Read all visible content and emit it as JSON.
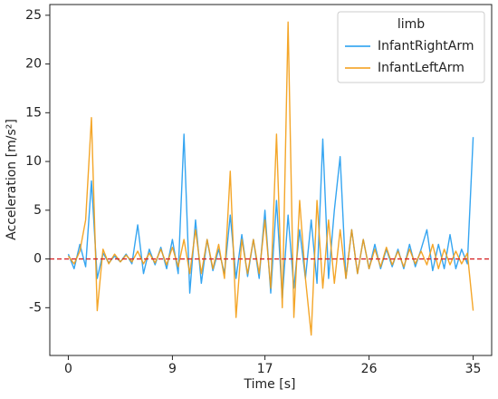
{
  "chart_data": {
    "type": "line",
    "xlabel": "Time [s]",
    "ylabel": "Acceleration [m/s²]",
    "x": [
      0,
      0.5,
      1,
      1.5,
      2,
      2.5,
      3,
      3.5,
      4,
      4.5,
      5,
      5.5,
      6,
      6.5,
      7,
      7.5,
      8,
      8.5,
      9,
      9.5,
      10,
      10.5,
      11,
      11.5,
      12,
      12.5,
      13,
      13.5,
      14,
      14.5,
      15,
      15.5,
      16,
      16.5,
      17,
      17.5,
      18,
      18.5,
      19,
      19.5,
      20,
      20.5,
      21,
      21.5,
      22,
      22.5,
      23,
      23.5,
      24,
      24.5,
      25,
      25.5,
      26,
      26.5,
      27,
      27.5,
      28,
      28.5,
      29,
      29.5,
      30,
      30.5,
      31,
      31.5,
      32,
      32.5,
      33,
      33.5,
      34,
      34.5,
      35
    ],
    "series": [
      {
        "name": "InfantRightArm",
        "color": "#1f9bef",
        "values": [
          0.5,
          -1,
          1.5,
          -0.8,
          8,
          -2,
          0.6,
          -0.4,
          0.3,
          -0.3,
          0.5,
          -0.5,
          3.5,
          -1.5,
          1,
          -0.6,
          1.2,
          -1,
          2,
          -1.5,
          12.8,
          -3.5,
          4,
          -2.5,
          2,
          -1.2,
          1,
          -1.5,
          4.5,
          -2,
          2.5,
          -1.8,
          2,
          -2,
          5,
          -3.5,
          6,
          -4,
          4.5,
          -3,
          3,
          -2,
          4,
          -2.5,
          12.3,
          -2,
          5,
          10.5,
          -2,
          3,
          -1.5,
          2,
          -1,
          1.5,
          -1,
          1,
          -0.8,
          1,
          -1,
          1.5,
          -0.8,
          1,
          3,
          -1.2,
          1.5,
          -1,
          2.5,
          -1,
          1,
          -0.5,
          12.5
        ]
      },
      {
        "name": "InfantLeftArm",
        "color": "#f39c12",
        "values": [
          0.3,
          -0.5,
          0.8,
          4,
          14.5,
          -5.3,
          1,
          -0.5,
          0.5,
          -0.3,
          0.4,
          -0.3,
          0.8,
          -0.5,
          0.6,
          -0.4,
          1,
          -0.6,
          1.2,
          -0.8,
          2,
          -1.5,
          3,
          -1.5,
          2,
          -1,
          1.5,
          -2,
          9,
          -6,
          2,
          -1.5,
          2,
          -1.5,
          4,
          -3,
          12.8,
          -5,
          24.3,
          -6,
          6,
          -2,
          -7.8,
          6,
          -3,
          4,
          -2.5,
          3,
          -2,
          3,
          -1.5,
          2,
          -1,
          1,
          -0.8,
          1.2,
          -0.6,
          0.8,
          -0.8,
          1,
          -0.5,
          0.8,
          -0.6,
          1.5,
          -1,
          1,
          -0.6,
          0.8,
          -0.5,
          0.6,
          -5.3
        ]
      }
    ],
    "hline": {
      "value": 0,
      "color": "#d62728"
    },
    "legend_title": "limb",
    "legend": "upper right",
    "xlim": [
      -1.6,
      36.6
    ],
    "xticks": [
      0,
      9,
      17,
      26,
      35
    ],
    "ylim": [
      -9.9,
      26.1
    ],
    "yticks": [
      -5,
      0,
      5,
      10,
      15,
      20,
      25
    ],
    "grid": false
  }
}
